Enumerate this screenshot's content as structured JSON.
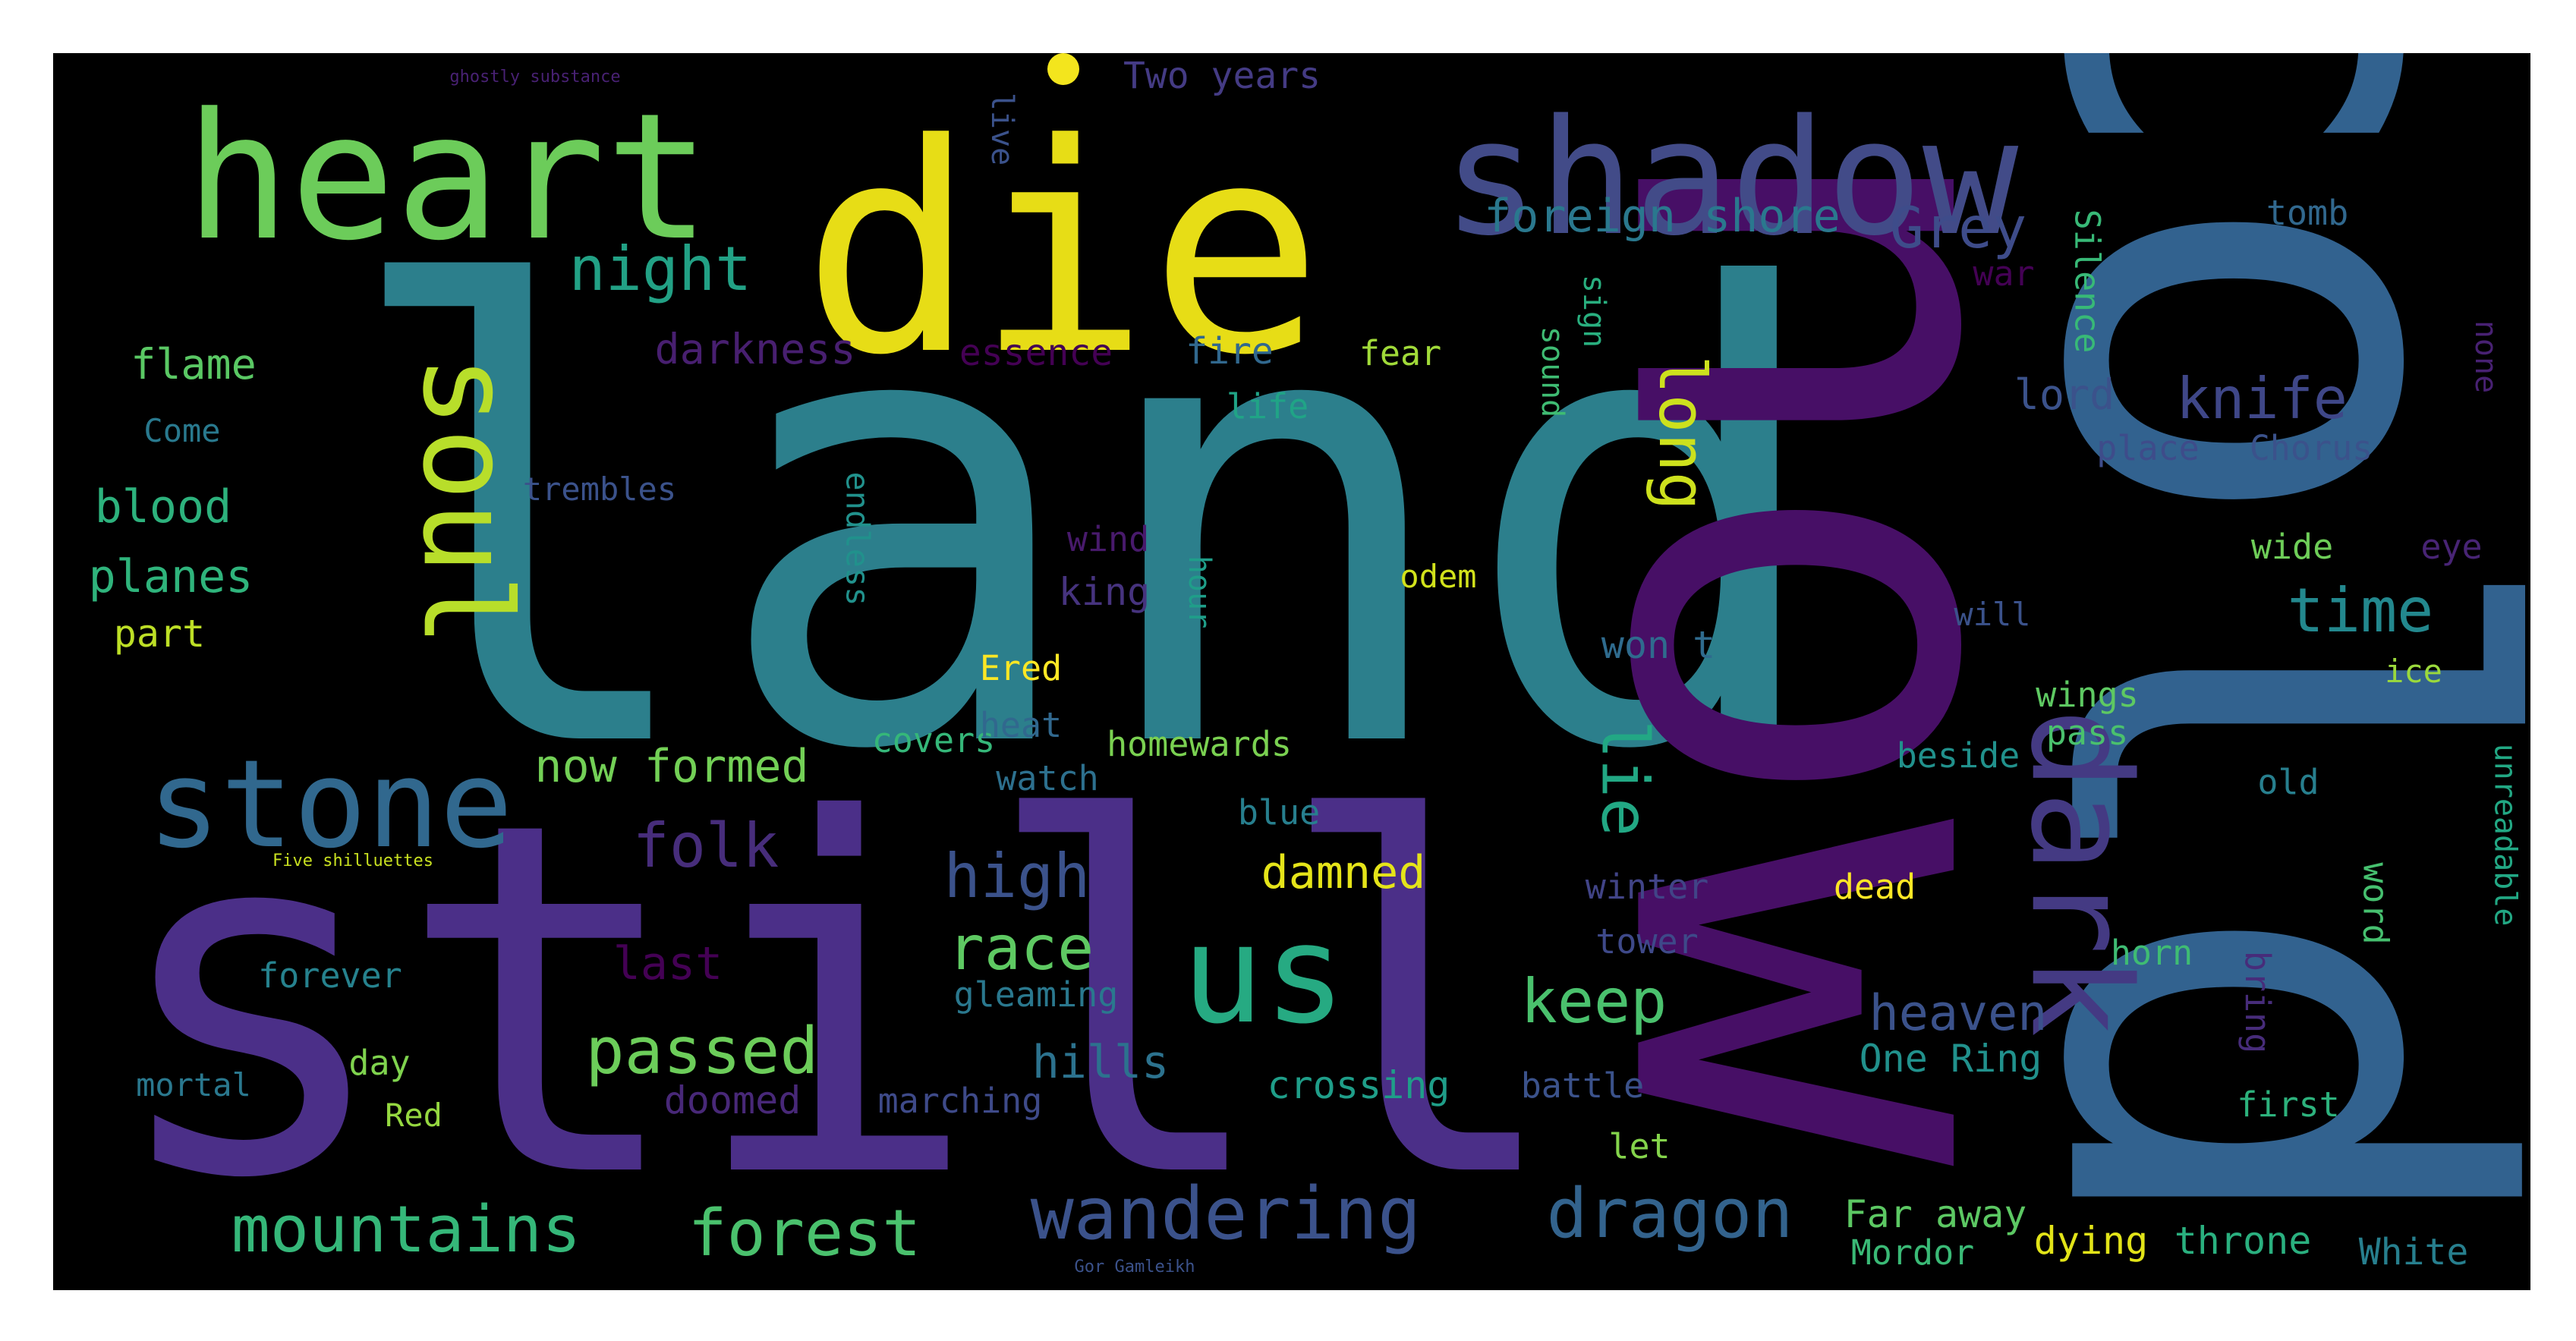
{
  "words": [
    {
      "text": "land",
      "color": "#2c7f8c",
      "rotated": false
    },
    {
      "text": "still",
      "color": "#4b2f88",
      "rotated": false
    },
    {
      "text": "now",
      "color": "#470f66",
      "rotated": true
    },
    {
      "text": "cold",
      "color": "#32628f",
      "rotated": true
    },
    {
      "text": "die",
      "color": "#e7dd16",
      "rotated": false
    },
    {
      "text": "shadow",
      "color": "#424b88",
      "rotated": false
    },
    {
      "text": "heart",
      "color": "#6ccc5a",
      "rotated": false
    },
    {
      "text": "soul",
      "color": "#b8de2a",
      "rotated": true
    },
    {
      "text": "stone",
      "color": "#31688e",
      "rotated": false
    },
    {
      "text": "us",
      "color": "#26aa82",
      "rotated": false
    },
    {
      "text": "dark",
      "color": "#443a83",
      "rotated": true
    },
    {
      "text": "night",
      "color": "#22a185",
      "rotated": false
    },
    {
      "text": "foreign shore",
      "color": "#2a788e",
      "rotated": false
    },
    {
      "text": "Grey",
      "color": "#3e4c8a",
      "rotated": false
    },
    {
      "text": "darkness",
      "color": "#481f70",
      "rotated": false
    },
    {
      "text": "long",
      "color": "#cde11d",
      "rotated": true
    },
    {
      "text": "flame",
      "color": "#5ac864",
      "rotated": false
    },
    {
      "text": "knife",
      "color": "#3f4788",
      "rotated": false
    },
    {
      "text": "lord",
      "color": "#3b528b",
      "rotated": false
    },
    {
      "text": "essence",
      "color": "#440154",
      "rotated": false
    },
    {
      "text": "fire",
      "color": "#31688e",
      "rotated": false
    },
    {
      "text": "fear",
      "color": "#a0da39",
      "rotated": false
    },
    {
      "text": "life",
      "color": "#20a486",
      "rotated": false
    },
    {
      "text": "Come",
      "color": "#29798e",
      "rotated": false
    },
    {
      "text": "blood",
      "color": "#2db27d",
      "rotated": false
    },
    {
      "text": "trembles",
      "color": "#3b528b",
      "rotated": false
    },
    {
      "text": "planes",
      "color": "#2fb47c",
      "rotated": false
    },
    {
      "text": "part",
      "color": "#bddf26",
      "rotated": false
    },
    {
      "text": "wind",
      "color": "#481a6c",
      "rotated": false
    },
    {
      "text": "king",
      "color": "#46337e",
      "rotated": false
    },
    {
      "text": "odem",
      "color": "#d2e21b",
      "rotated": false
    },
    {
      "text": "time",
      "color": "#23888e",
      "rotated": false
    },
    {
      "text": "won t",
      "color": "#2f6b8e",
      "rotated": false
    },
    {
      "text": "Ered",
      "color": "#fde725",
      "rotated": false
    },
    {
      "text": "now formed",
      "color": "#73d056",
      "rotated": false
    },
    {
      "text": "folk",
      "color": "#472d7b",
      "rotated": false
    },
    {
      "text": "covers",
      "color": "#35b779",
      "rotated": false
    },
    {
      "text": "homewards",
      "color": "#7ad151",
      "rotated": false
    },
    {
      "text": "watch",
      "color": "#2d708e",
      "rotated": false
    },
    {
      "text": "lie",
      "color": "#22a884",
      "rotated": true
    },
    {
      "text": "high",
      "color": "#3b528b",
      "rotated": false
    },
    {
      "text": "blue",
      "color": "#277f8e",
      "rotated": false
    },
    {
      "text": "damned",
      "color": "#e5e419",
      "rotated": false
    },
    {
      "text": "winter",
      "color": "#414487",
      "rotated": false
    },
    {
      "text": "dead",
      "color": "#fde725",
      "rotated": false
    },
    {
      "text": "race",
      "color": "#5ec962",
      "rotated": false
    },
    {
      "text": "last",
      "color": "#440154",
      "rotated": false
    },
    {
      "text": "tower",
      "color": "#3e4989",
      "rotated": false
    },
    {
      "text": "keep",
      "color": "#4ac16d",
      "rotated": false
    },
    {
      "text": "forever",
      "color": "#26828e",
      "rotated": false
    },
    {
      "text": "gleaming",
      "color": "#2a788e",
      "rotated": false
    },
    {
      "text": "heaven",
      "color": "#3b528b",
      "rotated": false
    },
    {
      "text": "passed",
      "color": "#6ccd5a",
      "rotated": false
    },
    {
      "text": "hills",
      "color": "#2c728e",
      "rotated": false
    },
    {
      "text": "One Ring",
      "color": "#21918c",
      "rotated": false
    },
    {
      "text": "mortal",
      "color": "#2a788e",
      "rotated": false
    },
    {
      "text": "day",
      "color": "#7fd34e",
      "rotated": false
    },
    {
      "text": "crossing",
      "color": "#1f9e89",
      "rotated": false
    },
    {
      "text": "battle",
      "color": "#3b528b",
      "rotated": false
    },
    {
      "text": "Red",
      "color": "#95d840",
      "rotated": false
    },
    {
      "text": "doomed",
      "color": "#482878",
      "rotated": false
    },
    {
      "text": "marching",
      "color": "#3e4a89",
      "rotated": false
    },
    {
      "text": "let",
      "color": "#84d44b",
      "rotated": false
    },
    {
      "text": "mountains",
      "color": "#35b779",
      "rotated": false
    },
    {
      "text": "forest",
      "color": "#4ac16d",
      "rotated": false
    },
    {
      "text": "wandering",
      "color": "#3b528b",
      "rotated": false
    },
    {
      "text": "dragon",
      "color": "#33638d",
      "rotated": false
    },
    {
      "text": "Far away",
      "color": "#5cc863",
      "rotated": false
    },
    {
      "text": "Mordor",
      "color": "#3aba76",
      "rotated": false
    },
    {
      "text": "dying",
      "color": "#e2e418",
      "rotated": false
    },
    {
      "text": "throne",
      "color": "#2ab07f",
      "rotated": false
    },
    {
      "text": "White",
      "color": "#277f8e",
      "rotated": false
    },
    {
      "text": "Two years",
      "color": "#443b84",
      "rotated": false
    },
    {
      "text": "ghostly substance",
      "color": "#482173",
      "rotated": false
    },
    {
      "text": "live",
      "color": "#3b528b",
      "rotated": true
    },
    {
      "text": "tomb",
      "color": "#31688e",
      "rotated": false
    },
    {
      "text": "war",
      "color": "#440154",
      "rotated": false
    },
    {
      "text": "Silence",
      "color": "#38b977",
      "rotated": true
    },
    {
      "text": "none",
      "color": "#482173",
      "rotated": true
    },
    {
      "text": "place",
      "color": "#3e4c8a",
      "rotated": false
    },
    {
      "text": "Chorus",
      "color": "#3b528b",
      "rotated": false
    },
    {
      "text": "sign",
      "color": "#29af7f",
      "rotated": true
    },
    {
      "text": "sound",
      "color": "#3fbc73",
      "rotated": true
    },
    {
      "text": "wide",
      "color": "#6ece58",
      "rotated": false
    },
    {
      "text": "eye",
      "color": "#482475",
      "rotated": false
    },
    {
      "text": "will",
      "color": "#3b528b",
      "rotated": false
    },
    {
      "text": "endless",
      "color": "#21918c",
      "rotated": true
    },
    {
      "text": "hour",
      "color": "#1f9e89",
      "rotated": true
    },
    {
      "text": "wings",
      "color": "#5ec962",
      "rotated": false
    },
    {
      "text": "pass",
      "color": "#4ac16d",
      "rotated": false
    },
    {
      "text": "beside",
      "color": "#21918c",
      "rotated": false
    },
    {
      "text": "heat",
      "color": "#31688e",
      "rotated": false
    },
    {
      "text": "ice",
      "color": "#9bd93c",
      "rotated": false
    },
    {
      "text": "old",
      "color": "#277f8e",
      "rotated": false
    },
    {
      "text": "unreadable",
      "color": "#22a884",
      "rotated": true
    },
    {
      "text": "word",
      "color": "#46c06f",
      "rotated": true
    },
    {
      "text": "horn",
      "color": "#3fbc73",
      "rotated": false
    },
    {
      "text": "bring",
      "color": "#472c7a",
      "rotated": true
    },
    {
      "text": "first",
      "color": "#2db27d",
      "rotated": false
    },
    {
      "text": "Five shilluettes",
      "color": "#c8e020",
      "rotated": false
    },
    {
      "text": "Gor Gamleikh",
      "color": "#3b528b",
      "rotated": false
    }
  ]
}
